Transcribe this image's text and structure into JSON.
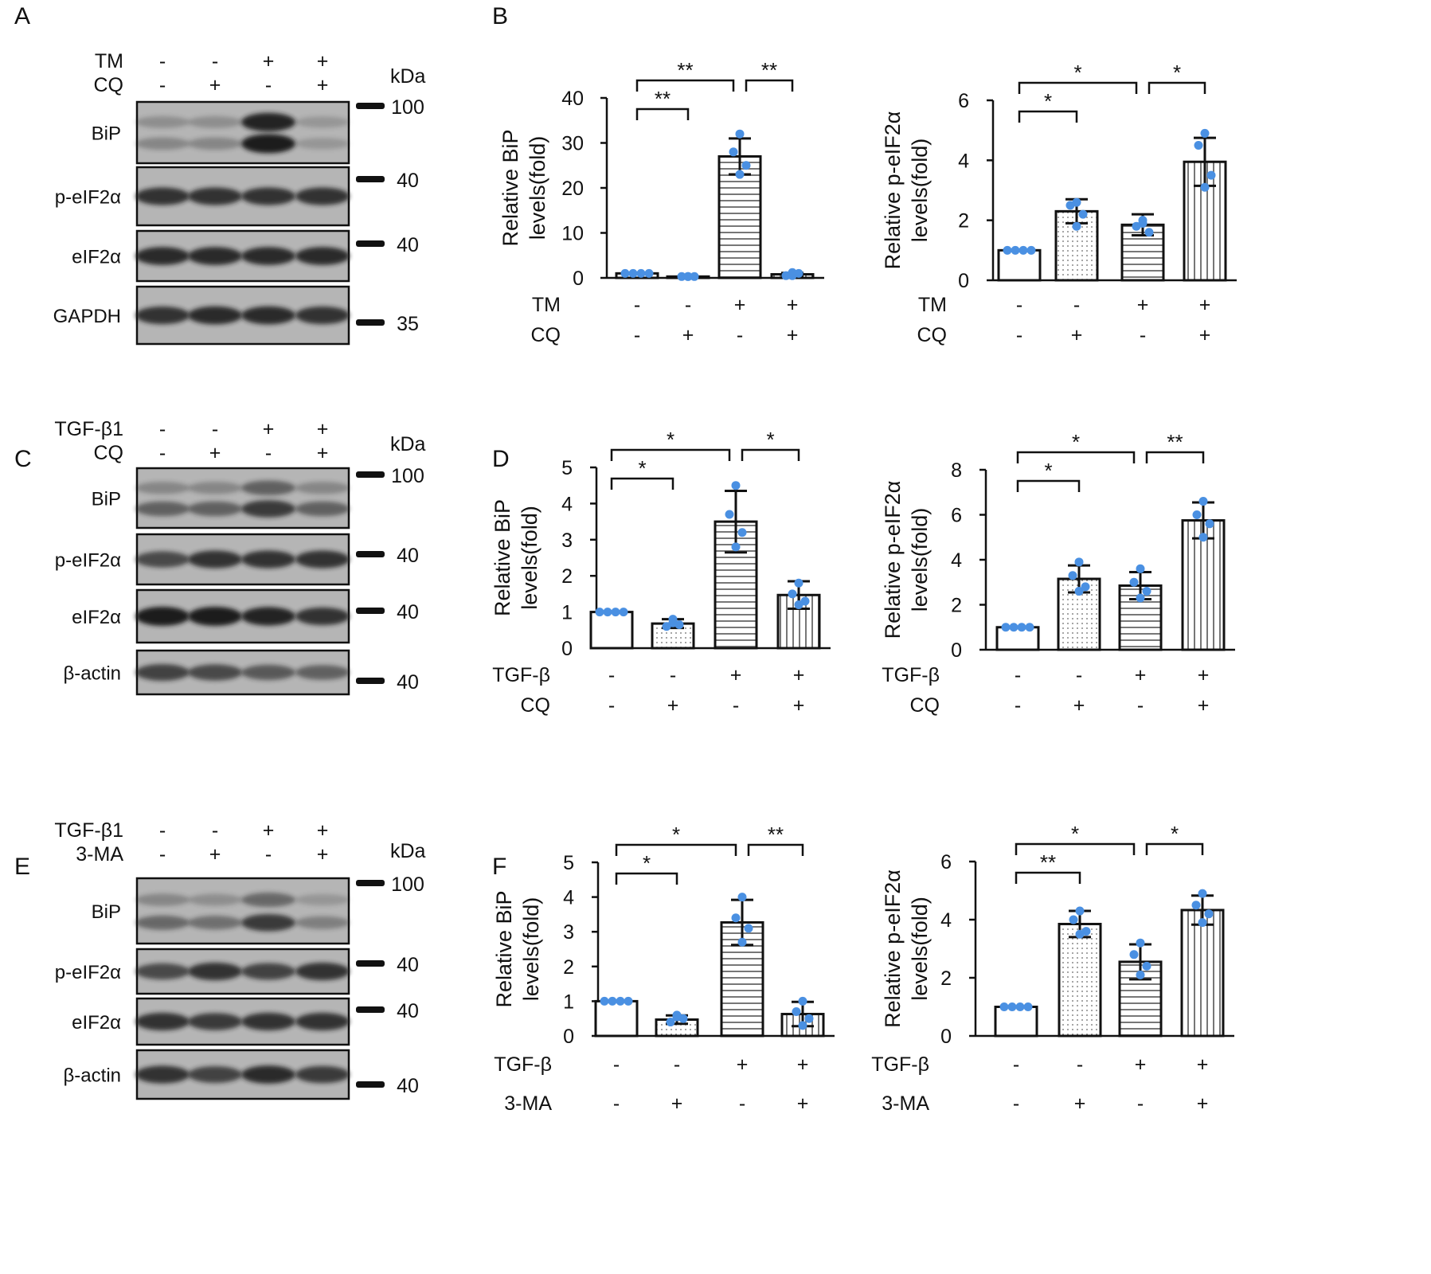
{
  "panel_letters": [
    "A",
    "B",
    "C",
    "D",
    "E",
    "F"
  ],
  "colors": {
    "dot": "#4a90e2",
    "ink": "#111111",
    "blot_bg": "#b5b5b5",
    "band": "#1e1e1e"
  },
  "blots": [
    {
      "treatments": [
        {
          "label": "TM",
          "signs": [
            "-",
            "-",
            "+",
            "+"
          ]
        },
        {
          "label": "CQ",
          "signs": [
            "-",
            "+",
            "-",
            "+"
          ]
        }
      ],
      "kda_label": "kDa",
      "rows": [
        {
          "label": "BiP",
          "bands": [
            [
              0.25,
              0.25,
              0.95,
              0.2
            ],
            [
              0.3,
              0.3,
              1.0,
              0.2
            ]
          ]
        },
        {
          "label": "p-eIF2α",
          "bands": [
            [
              0.85,
              0.85,
              0.85,
              0.85
            ]
          ]
        },
        {
          "label": "eIF2α",
          "bands": [
            [
              0.9,
              0.9,
              0.9,
              0.9
            ]
          ]
        },
        {
          "label": "GAPDH",
          "bands": [
            [
              0.85,
              0.9,
              0.9,
              0.85
            ]
          ]
        }
      ],
      "markers": [
        "100",
        "40",
        "40",
        "35"
      ]
    },
    {
      "treatments": [
        {
          "label": "TGF-β1",
          "signs": [
            "-",
            "-",
            "+",
            "+"
          ]
        },
        {
          "label": "CQ",
          "signs": [
            "-",
            "+",
            "-",
            "+"
          ]
        }
      ],
      "kda_label": "kDa",
      "rows": [
        {
          "label": "BiP",
          "bands": [
            [
              0.3,
              0.3,
              0.55,
              0.3
            ],
            [
              0.55,
              0.55,
              0.8,
              0.55
            ]
          ]
        },
        {
          "label": "p-eIF2α",
          "bands": [
            [
              0.7,
              0.85,
              0.85,
              0.85
            ]
          ]
        },
        {
          "label": "eIF2α",
          "bands": [
            [
              1.0,
              1.0,
              0.95,
              0.85
            ]
          ]
        },
        {
          "label": "β-actin",
          "bands": [
            [
              0.75,
              0.7,
              0.6,
              0.55
            ]
          ]
        }
      ],
      "markers": [
        "100",
        "40",
        "40",
        "40"
      ]
    },
    {
      "treatments": [
        {
          "label": "TGF-β1",
          "signs": [
            "-",
            "-",
            "+",
            "+"
          ]
        },
        {
          "label": "3-MA",
          "signs": [
            "-",
            "+",
            "-",
            "+"
          ]
        }
      ],
      "kda_label": "kDa",
      "rows": [
        {
          "label": "BiP",
          "bands": [
            [
              0.3,
              0.25,
              0.5,
              0.2
            ],
            [
              0.5,
              0.45,
              0.8,
              0.35
            ]
          ]
        },
        {
          "label": "p-eIF2α",
          "bands": [
            [
              0.7,
              0.85,
              0.75,
              0.85
            ]
          ]
        },
        {
          "label": "eIF2α",
          "bands": [
            [
              0.85,
              0.8,
              0.85,
              0.85
            ]
          ]
        },
        {
          "label": "β-actin",
          "bands": [
            [
              0.85,
              0.75,
              0.9,
              0.8
            ]
          ]
        }
      ],
      "markers": [
        "100",
        "40",
        "40",
        "40"
      ]
    }
  ],
  "chart_data": [
    {
      "type": "bar",
      "panel": "B",
      "ylabel_lines": [
        "Relative  BiP",
        "levels(fold)"
      ],
      "ylim": [
        0,
        40
      ],
      "yticks": [
        0,
        10,
        20,
        30,
        40
      ],
      "values": [
        1,
        0.3,
        27,
        0.8
      ],
      "errors": [
        0,
        0,
        4,
        0.3
      ],
      "points": [
        [
          1,
          1,
          1,
          1
        ],
        [
          0.3,
          0.3,
          0.3,
          0.3
        ],
        [
          32,
          28,
          25,
          23
        ],
        [
          0.5,
          0.5,
          1.0,
          1.2
        ]
      ],
      "fills": [
        "none",
        "dots",
        "hstripes",
        "vstripes"
      ],
      "factors": [
        {
          "label": "TM",
          "signs": [
            "-",
            "-",
            "+",
            "+"
          ]
        },
        {
          "label": "CQ",
          "signs": [
            "-",
            "+",
            "-",
            "+"
          ]
        }
      ],
      "comparisons": [
        {
          "from": 0,
          "to": 1,
          "label": "**",
          "level": 0
        },
        {
          "from": 0,
          "to": 2,
          "label": "**",
          "level": 1
        },
        {
          "from": 2,
          "to": 3,
          "label": "**",
          "level": 1
        }
      ]
    },
    {
      "type": "bar",
      "panel": "B",
      "ylabel_lines": [
        "Relative p-eIF2α",
        "levels(fold)"
      ],
      "ylim": [
        0,
        6
      ],
      "yticks": [
        0,
        2,
        4,
        6
      ],
      "values": [
        1,
        2.3,
        1.85,
        3.95
      ],
      "errors": [
        0,
        0.4,
        0.35,
        0.8
      ],
      "points": [
        [
          1,
          1,
          1,
          1
        ],
        [
          2.6,
          2.5,
          2.2,
          1.8
        ],
        [
          2.0,
          1.8,
          1.6,
          1.9
        ],
        [
          4.9,
          4.5,
          3.5,
          3.1
        ]
      ],
      "fills": [
        "none",
        "dots",
        "hstripes",
        "vstripes"
      ],
      "factors": [
        {
          "label": "TM",
          "signs": [
            "-",
            "-",
            "+",
            "+"
          ]
        },
        {
          "label": "CQ",
          "signs": [
            "-",
            "+",
            "-",
            "+"
          ]
        }
      ],
      "comparisons": [
        {
          "from": 0,
          "to": 1,
          "label": "*",
          "level": 0
        },
        {
          "from": 0,
          "to": 2,
          "label": "*",
          "level": 1
        },
        {
          "from": 2,
          "to": 3,
          "label": "*",
          "level": 1
        }
      ]
    },
    {
      "type": "bar",
      "panel": "D",
      "ylabel_lines": [
        "Relative  BiP",
        "levels(fold)"
      ],
      "ylim": [
        0,
        5
      ],
      "yticks": [
        0,
        1,
        2,
        3,
        4,
        5
      ],
      "values": [
        1,
        0.68,
        3.5,
        1.47
      ],
      "errors": [
        0,
        0.12,
        0.85,
        0.38
      ],
      "points": [
        [
          1,
          1,
          1,
          1
        ],
        [
          0.7,
          0.6,
          0.65,
          0.8
        ],
        [
          4.5,
          3.7,
          3.2,
          2.8
        ],
        [
          1.8,
          1.5,
          1.3,
          1.2
        ]
      ],
      "fills": [
        "none",
        "dots",
        "hstripes",
        "vstripes"
      ],
      "factors": [
        {
          "label": "TGF-β",
          "signs": [
            "-",
            "-",
            "+",
            "+"
          ]
        },
        {
          "label": "CQ",
          "signs": [
            "-",
            "+",
            "-",
            "+"
          ]
        }
      ],
      "comparisons": [
        {
          "from": 0,
          "to": 1,
          "label": "*",
          "level": 0
        },
        {
          "from": 0,
          "to": 2,
          "label": "*",
          "level": 1
        },
        {
          "from": 2,
          "to": 3,
          "label": "*",
          "level": 1
        }
      ]
    },
    {
      "type": "bar",
      "panel": "D",
      "ylabel_lines": [
        "Relative p-eIF2α",
        "levels(fold)"
      ],
      "ylim": [
        0,
        8
      ],
      "yticks": [
        0,
        2,
        4,
        6,
        8
      ],
      "values": [
        1,
        3.15,
        2.85,
        5.75
      ],
      "errors": [
        0,
        0.6,
        0.6,
        0.8
      ],
      "points": [
        [
          1,
          1,
          1,
          1
        ],
        [
          3.9,
          3.3,
          2.8,
          2.6
        ],
        [
          3.6,
          3.0,
          2.6,
          2.3
        ],
        [
          6.6,
          6.0,
          5.6,
          5.0
        ]
      ],
      "fills": [
        "none",
        "dots",
        "hstripes",
        "vstripes"
      ],
      "factors": [
        {
          "label": "TGF-β",
          "signs": [
            "-",
            "-",
            "+",
            "+"
          ]
        },
        {
          "label": "CQ",
          "signs": [
            "-",
            "+",
            "-",
            "+"
          ]
        }
      ],
      "comparisons": [
        {
          "from": 0,
          "to": 1,
          "label": "*",
          "level": 0
        },
        {
          "from": 0,
          "to": 2,
          "label": "*",
          "level": 1
        },
        {
          "from": 2,
          "to": 3,
          "label": "**",
          "level": 1
        }
      ]
    },
    {
      "type": "bar",
      "panel": "F",
      "ylabel_lines": [
        "Relative  BiP",
        "levels(fold)"
      ],
      "ylim": [
        0,
        5
      ],
      "yticks": [
        0,
        1,
        2,
        3,
        4,
        5
      ],
      "values": [
        1,
        0.47,
        3.27,
        0.63
      ],
      "errors": [
        0,
        0.12,
        0.65,
        0.35
      ],
      "points": [
        [
          1,
          1,
          1,
          1
        ],
        [
          0.55,
          0.4,
          0.5,
          0.6
        ],
        [
          4.0,
          3.4,
          3.1,
          2.7
        ],
        [
          1.0,
          0.7,
          0.5,
          0.3
        ]
      ],
      "fills": [
        "none",
        "dots",
        "hstripes",
        "vstripes"
      ],
      "factors": [
        {
          "label": "TGF-β",
          "signs": [
            "-",
            "-",
            "+",
            "+"
          ]
        },
        {
          "label": "3-MA",
          "signs": [
            "-",
            "+",
            "-",
            "+"
          ]
        }
      ],
      "comparisons": [
        {
          "from": 0,
          "to": 1,
          "label": "*",
          "level": 0
        },
        {
          "from": 0,
          "to": 2,
          "label": "*",
          "level": 1
        },
        {
          "from": 2,
          "to": 3,
          "label": "**",
          "level": 1
        }
      ]
    },
    {
      "type": "bar",
      "panel": "F",
      "ylabel_lines": [
        "Relative p-eIF2α",
        "levels(fold)"
      ],
      "ylim": [
        0,
        6
      ],
      "yticks": [
        0,
        2,
        4,
        6
      ],
      "values": [
        1,
        3.85,
        2.55,
        4.33
      ],
      "errors": [
        0,
        0.45,
        0.6,
        0.5
      ],
      "points": [
        [
          1,
          1,
          1,
          1
        ],
        [
          4.3,
          4.0,
          3.6,
          3.5
        ],
        [
          3.2,
          2.8,
          2.4,
          2.1
        ],
        [
          4.9,
          4.5,
          4.2,
          3.9
        ]
      ],
      "fills": [
        "none",
        "dots",
        "hstripes",
        "vstripes"
      ],
      "factors": [
        {
          "label": "TGF-β",
          "signs": [
            "-",
            "-",
            "+",
            "+"
          ]
        },
        {
          "label": "3-MA",
          "signs": [
            "-",
            "+",
            "-",
            "+"
          ]
        }
      ],
      "comparisons": [
        {
          "from": 0,
          "to": 1,
          "label": "**",
          "level": 0
        },
        {
          "from": 0,
          "to": 2,
          "label": "*",
          "level": 1
        },
        {
          "from": 2,
          "to": 3,
          "label": "*",
          "level": 1
        }
      ]
    }
  ]
}
